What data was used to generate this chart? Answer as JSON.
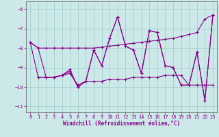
{
  "xlabel": "Windchill (Refroidissement éolien,°C)",
  "xlim": [
    -0.5,
    23.5
  ],
  "ylim": [
    -11.3,
    -5.6
  ],
  "yticks": [
    -11,
    -10,
    -9,
    -8,
    -7,
    -6
  ],
  "xticks": [
    0,
    1,
    2,
    3,
    4,
    5,
    6,
    7,
    8,
    9,
    10,
    11,
    12,
    13,
    14,
    15,
    16,
    17,
    18,
    19,
    20,
    21,
    22,
    23
  ],
  "background_color": "#cce8e8",
  "line_color": "#880088",
  "grid_color": "#99cccc",
  "series1_x": [
    0,
    1,
    2,
    3,
    4,
    5,
    6,
    7,
    8,
    9,
    10,
    11,
    12,
    13,
    14,
    15,
    16,
    17,
    18,
    19,
    20,
    21,
    22,
    23
  ],
  "series1_y": [
    -7.7,
    -8.0,
    -8.0,
    -8.0,
    -8.0,
    -8.0,
    -8.0,
    -8.0,
    -8.0,
    -7.95,
    -7.9,
    -7.85,
    -7.8,
    -7.75,
    -7.7,
    -7.65,
    -7.6,
    -7.55,
    -7.5,
    -7.4,
    -7.3,
    -7.2,
    -6.5,
    -6.3
  ],
  "series2_x": [
    0,
    1,
    2,
    3,
    4,
    5,
    6,
    7,
    8,
    9,
    10,
    11,
    12,
    13,
    14,
    15,
    16,
    17,
    18,
    19,
    20,
    21,
    22,
    23
  ],
  "series2_y": [
    -7.7,
    -8.0,
    -9.5,
    -9.5,
    -9.4,
    -9.2,
    -10.0,
    -9.7,
    -8.1,
    -8.9,
    -7.5,
    -6.4,
    -7.9,
    -8.1,
    -9.3,
    -7.1,
    -7.2,
    -8.9,
    -9.0,
    -9.9,
    -9.9,
    -8.2,
    -10.7,
    -6.3
  ],
  "series3_x": [
    1,
    2,
    3,
    4,
    5,
    6,
    7,
    8,
    9,
    10,
    11,
    12,
    13,
    14,
    15,
    16,
    17,
    18,
    19,
    20,
    21,
    22,
    23
  ],
  "series3_y": [
    -9.5,
    -9.5,
    -9.5,
    -9.4,
    -9.3,
    -9.9,
    -9.7,
    -9.7,
    -9.7,
    -9.6,
    -9.6,
    -9.6,
    -9.5,
    -9.5,
    -9.5,
    -9.5,
    -9.4,
    -9.4,
    -9.4,
    -9.9,
    -9.9,
    -9.9,
    -9.9
  ],
  "series4_x": [
    0,
    1,
    2,
    3,
    4,
    5,
    6,
    7,
    8,
    9,
    10,
    11,
    12,
    13,
    14,
    15,
    16,
    17,
    18,
    19,
    20,
    21,
    22,
    23
  ],
  "series4_y": [
    -7.7,
    -9.5,
    -9.5,
    -9.5,
    -9.4,
    -9.1,
    -10.0,
    -9.7,
    -8.1,
    -8.9,
    -7.5,
    -6.4,
    -7.9,
    -8.1,
    -9.3,
    -7.1,
    -7.2,
    -8.9,
    -9.0,
    -9.9,
    -9.9,
    -8.2,
    -10.7,
    -6.3
  ]
}
